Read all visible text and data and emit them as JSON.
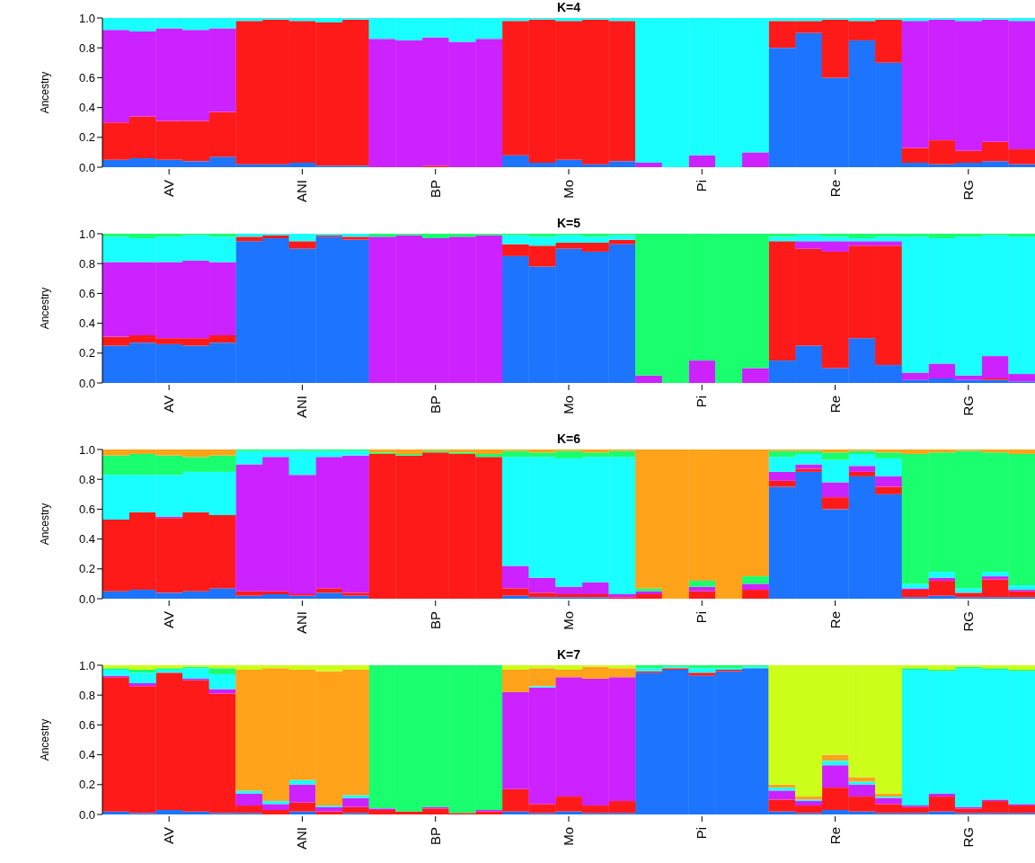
{
  "chart_data": [
    {
      "type": "bar",
      "stacked": true,
      "title": "K=4",
      "ylabel": "Ancestry",
      "ylim": [
        0,
        1
      ],
      "yticks": [
        {
          "value": 0,
          "label": "0.0"
        },
        {
          "value": 0.2,
          "label": "0.2"
        },
        {
          "value": 0.4,
          "label": "0.4"
        },
        {
          "value": 0.6,
          "label": "0.6"
        },
        {
          "value": 0.8,
          "label": "0.8"
        },
        {
          "value": 1,
          "label": "1.0"
        }
      ],
      "categories": [
        null,
        null,
        "AV",
        null,
        null,
        null,
        null,
        "ANI",
        null,
        null,
        null,
        null,
        "BP",
        null,
        null,
        null,
        null,
        "Mo",
        null,
        null,
        null,
        null,
        "Pi",
        null,
        null,
        null,
        null,
        "Re",
        null,
        null,
        null,
        null,
        "RG",
        null,
        null
      ],
      "series": [
        {
          "color": "#1c74ff",
          "values": [
            0.05,
            0.06,
            0.05,
            0.04,
            0.07,
            0.02,
            0.02,
            0.03,
            0.01,
            0.01,
            0,
            0,
            0,
            0,
            0,
            0.08,
            0.03,
            0.05,
            0.02,
            0.04,
            0,
            0,
            0,
            0,
            0,
            0.8,
            0.9,
            0.6,
            0.85,
            0.7,
            0.03,
            0.02,
            0.03,
            0.04,
            0.02
          ]
        },
        {
          "color": "#ff1a1a",
          "values": [
            0.25,
            0.28,
            0.26,
            0.27,
            0.3,
            0.96,
            0.97,
            0.95,
            0.96,
            0.98,
            0,
            0,
            0.01,
            0,
            0,
            0.9,
            0.96,
            0.93,
            0.97,
            0.94,
            0,
            0,
            0,
            0,
            0,
            0.18,
            0.08,
            0.39,
            0.13,
            0.29,
            0.1,
            0.16,
            0.08,
            0.13,
            0.1
          ]
        },
        {
          "color": "#cc22ff",
          "values": [
            0.62,
            0.57,
            0.62,
            0.61,
            0.56,
            0,
            0,
            0,
            0,
            0,
            0.86,
            0.85,
            0.86,
            0.84,
            0.86,
            0,
            0,
            0,
            0,
            0,
            0.03,
            0,
            0.08,
            0,
            0.1,
            0,
            0,
            0,
            0,
            0,
            0.85,
            0.81,
            0.87,
            0.82,
            0.86
          ]
        },
        {
          "color": "#19ffff",
          "values": [
            0.08,
            0.09,
            0.07,
            0.08,
            0.07,
            0.02,
            0.01,
            0.02,
            0.03,
            0.01,
            0.14,
            0.15,
            0.13,
            0.16,
            0.14,
            0.02,
            0.01,
            0.02,
            0.01,
            0.02,
            0.97,
            1,
            0.92,
            1,
            0.9,
            0.02,
            0.02,
            0.01,
            0.02,
            0.01,
            0.02,
            0.01,
            0.02,
            0.01,
            0.02
          ]
        }
      ]
    },
    {
      "type": "bar",
      "stacked": true,
      "title": "K=5",
      "ylabel": "Ancestry",
      "ylim": [
        0,
        1
      ],
      "yticks": [
        {
          "value": 0,
          "label": "0.0"
        },
        {
          "value": 0.2,
          "label": "0.2"
        },
        {
          "value": 0.4,
          "label": "0.4"
        },
        {
          "value": 0.6,
          "label": "0.6"
        },
        {
          "value": 0.8,
          "label": "0.8"
        },
        {
          "value": 1,
          "label": "1.0"
        }
      ],
      "categories": [
        null,
        null,
        "AV",
        null,
        null,
        null,
        null,
        "ANI",
        null,
        null,
        null,
        null,
        "BP",
        null,
        null,
        null,
        null,
        "Mo",
        null,
        null,
        null,
        null,
        "Pi",
        null,
        null,
        null,
        null,
        "Re",
        null,
        null,
        null,
        null,
        "RG",
        null,
        null
      ],
      "series": [
        {
          "color": "#1c74ff",
          "values": [
            0.25,
            0.27,
            0.26,
            0.25,
            0.27,
            0.95,
            0.97,
            0.9,
            0.98,
            0.96,
            0,
            0,
            0,
            0,
            0,
            0.85,
            0.78,
            0.9,
            0.88,
            0.93,
            0,
            0,
            0,
            0,
            0,
            0.15,
            0.25,
            0.1,
            0.3,
            0.12,
            0.02,
            0.03,
            0.02,
            0.02,
            0.01
          ]
        },
        {
          "color": "#ff1a1a",
          "values": [
            0.06,
            0.05,
            0.04,
            0.05,
            0.05,
            0.03,
            0.02,
            0.05,
            0.01,
            0.02,
            0,
            0,
            0,
            0,
            0,
            0.08,
            0.14,
            0.04,
            0.06,
            0.03,
            0,
            0,
            0,
            0,
            0,
            0.8,
            0.65,
            0.78,
            0.62,
            0.8,
            0,
            0,
            0,
            0.01,
            0
          ]
        },
        {
          "color": "#cc22ff",
          "values": [
            0.5,
            0.49,
            0.51,
            0.52,
            0.49,
            0,
            0,
            0,
            0,
            0,
            0.98,
            0.99,
            0.97,
            0.98,
            0.99,
            0,
            0,
            0,
            0,
            0,
            0.05,
            0,
            0.15,
            0,
            0.1,
            0,
            0.05,
            0.07,
            0.03,
            0.03,
            0.05,
            0.1,
            0.03,
            0.15,
            0.05
          ]
        },
        {
          "color": "#19ffff",
          "values": [
            0.17,
            0.16,
            0.17,
            0.17,
            0.17,
            0.02,
            0.01,
            0.05,
            0.01,
            0.02,
            0,
            0,
            0,
            0,
            0,
            0.06,
            0.06,
            0.05,
            0.04,
            0.03,
            0,
            0,
            0,
            0,
            0,
            0.03,
            0.04,
            0.03,
            0.02,
            0.03,
            0.91,
            0.84,
            0.93,
            0.81,
            0.92
          ]
        },
        {
          "color": "#19ff6e",
          "values": [
            0.02,
            0.03,
            0.02,
            0.01,
            0.02,
            0,
            0,
            0,
            0,
            0,
            0.02,
            0.01,
            0.03,
            0.02,
            0.01,
            0.01,
            0.02,
            0.01,
            0.02,
            0.01,
            0.95,
            1,
            0.85,
            1,
            0.9,
            0.02,
            0.01,
            0.02,
            0.03,
            0.02,
            0.02,
            0.03,
            0.02,
            0.01,
            0.02
          ]
        }
      ]
    },
    {
      "type": "bar",
      "stacked": true,
      "title": "K=6",
      "ylabel": "Ancestry",
      "ylim": [
        0,
        1
      ],
      "yticks": [
        {
          "value": 0,
          "label": "0.0"
        },
        {
          "value": 0.2,
          "label": "0.2"
        },
        {
          "value": 0.4,
          "label": "0.4"
        },
        {
          "value": 0.6,
          "label": "0.6"
        },
        {
          "value": 0.8,
          "label": "0.8"
        },
        {
          "value": 1,
          "label": "1.0"
        }
      ],
      "categories": [
        null,
        null,
        "AV",
        null,
        null,
        null,
        null,
        "ANI",
        null,
        null,
        null,
        null,
        "BP",
        null,
        null,
        null,
        null,
        "Mo",
        null,
        null,
        null,
        null,
        "Pi",
        null,
        null,
        null,
        null,
        "Re",
        null,
        null,
        null,
        null,
        "RG",
        null,
        null
      ],
      "series": [
        {
          "color": "#1c74ff",
          "values": [
            0.05,
            0.06,
            0.04,
            0.05,
            0.07,
            0.02,
            0.03,
            0.02,
            0.04,
            0.02,
            0,
            0,
            0,
            0,
            0,
            0.02,
            0.01,
            0.01,
            0.01,
            0,
            0,
            0,
            0,
            0,
            0,
            0.75,
            0.85,
            0.6,
            0.82,
            0.7,
            0.01,
            0.02,
            0.01,
            0.01,
            0.01
          ]
        },
        {
          "color": "#ff1a1a",
          "values": [
            0.48,
            0.52,
            0.5,
            0.53,
            0.49,
            0.03,
            0.02,
            0.01,
            0.03,
            0.02,
            0.97,
            0.96,
            0.98,
            0.97,
            0.95,
            0.05,
            0.03,
            0.02,
            0.02,
            0.01,
            0.03,
            0,
            0.05,
            0,
            0.06,
            0.04,
            0.02,
            0.08,
            0.03,
            0.05,
            0.05,
            0.1,
            0.03,
            0.12,
            0.04
          ]
        },
        {
          "color": "#cc22ff",
          "values": [
            0,
            0,
            0.01,
            0,
            0,
            0.85,
            0.9,
            0.8,
            0.88,
            0.92,
            0,
            0,
            0,
            0,
            0,
            0.15,
            0.1,
            0.05,
            0.08,
            0.02,
            0.02,
            0,
            0.03,
            0,
            0.04,
            0.06,
            0.03,
            0.1,
            0.04,
            0.07,
            0.01,
            0.02,
            0,
            0.02,
            0.01
          ]
        },
        {
          "color": "#19ffff",
          "values": [
            0.3,
            0.25,
            0.28,
            0.27,
            0.29,
            0.09,
            0.04,
            0.16,
            0.04,
            0.03,
            0,
            0,
            0,
            0,
            0,
            0.73,
            0.81,
            0.86,
            0.84,
            0.92,
            0,
            0,
            0,
            0,
            0,
            0.1,
            0.07,
            0.15,
            0.08,
            0.12,
            0.03,
            0.04,
            0.03,
            0.03,
            0.03
          ]
        },
        {
          "color": "#19ff6e",
          "values": [
            0.13,
            0.14,
            0.13,
            0.1,
            0.11,
            0.01,
            0.01,
            0.01,
            0.01,
            0.01,
            0.01,
            0.01,
            0.01,
            0.01,
            0.02,
            0.04,
            0.03,
            0.05,
            0.03,
            0.04,
            0.02,
            0,
            0.04,
            0,
            0.05,
            0.04,
            0.02,
            0.05,
            0.02,
            0.04,
            0.87,
            0.8,
            0.92,
            0.8,
            0.88
          ]
        },
        {
          "color": "#ffa31a",
          "values": [
            0.04,
            0.03,
            0.04,
            0.05,
            0.04,
            0,
            0,
            0,
            0,
            0,
            0.02,
            0.03,
            0.01,
            0.02,
            0.03,
            0.01,
            0.02,
            0.01,
            0.02,
            0.01,
            0.93,
            1,
            0.88,
            1,
            0.85,
            0.01,
            0.01,
            0.02,
            0.01,
            0.02,
            0.03,
            0.02,
            0.01,
            0.02,
            0.03
          ]
        }
      ]
    },
    {
      "type": "bar",
      "stacked": true,
      "title": "K=7",
      "ylabel": "Ancestry",
      "ylim": [
        0,
        1
      ],
      "yticks": [
        {
          "value": 0,
          "label": "0.0"
        },
        {
          "value": 0.2,
          "label": "0.2"
        },
        {
          "value": 0.4,
          "label": "0.4"
        },
        {
          "value": 0.6,
          "label": "0.6"
        },
        {
          "value": 0.8,
          "label": "0.8"
        },
        {
          "value": 1,
          "label": "1.0"
        }
      ],
      "categories": [
        null,
        null,
        "AV",
        null,
        null,
        null,
        null,
        "ANI",
        null,
        null,
        null,
        null,
        "BP",
        null,
        null,
        null,
        null,
        "Mo",
        null,
        null,
        null,
        null,
        "Pi",
        null,
        null,
        null,
        null,
        "Re",
        null,
        null,
        null,
        null,
        "RG",
        null,
        null
      ],
      "series": [
        {
          "color": "#1c74ff",
          "values": [
            0.02,
            0.01,
            0.03,
            0.02,
            0.01,
            0.01,
            0,
            0.02,
            0,
            0.01,
            0,
            0,
            0,
            0,
            0,
            0.02,
            0.01,
            0.02,
            0.01,
            0.01,
            0.95,
            0.97,
            0.93,
            0.96,
            0.98,
            0.02,
            0.01,
            0.03,
            0.02,
            0.01,
            0.01,
            0.02,
            0.01,
            0.01,
            0.01
          ]
        },
        {
          "color": "#ff1a1a",
          "values": [
            0.9,
            0.85,
            0.92,
            0.88,
            0.8,
            0.05,
            0.03,
            0.06,
            0.02,
            0.04,
            0.03,
            0.02,
            0.04,
            0.01,
            0.02,
            0.15,
            0.06,
            0.1,
            0.05,
            0.08,
            0.01,
            0.01,
            0.02,
            0.01,
            0,
            0.08,
            0.05,
            0.15,
            0.1,
            0.06,
            0.04,
            0.1,
            0.03,
            0.08,
            0.05
          ]
        },
        {
          "color": "#cc22ff",
          "values": [
            0.01,
            0.02,
            0,
            0.01,
            0.03,
            0.08,
            0.04,
            0.12,
            0.03,
            0.06,
            0.01,
            0,
            0.01,
            0,
            0.01,
            0.65,
            0.78,
            0.8,
            0.85,
            0.83,
            0,
            0,
            0,
            0,
            0,
            0.06,
            0.03,
            0.15,
            0.08,
            0.04,
            0.01,
            0.02,
            0.01,
            0.01,
            0.01
          ]
        },
        {
          "color": "#19ffff",
          "values": [
            0.04,
            0.07,
            0.02,
            0.07,
            0.1,
            0.02,
            0.02,
            0.03,
            0.01,
            0.02,
            0,
            0,
            0,
            0,
            0,
            0,
            0.01,
            0,
            0,
            0,
            0.02,
            0.01,
            0.03,
            0.01,
            0.01,
            0.02,
            0.01,
            0.03,
            0.02,
            0.01,
            0.91,
            0.82,
            0.93,
            0.87,
            0.89
          ]
        },
        {
          "color": "#19ff6e",
          "values": [
            0.01,
            0.02,
            0.01,
            0.01,
            0.04,
            0,
            0,
            0,
            0,
            0,
            0.96,
            0.98,
            0.95,
            0.99,
            0.97,
            0,
            0,
            0,
            0,
            0,
            0.02,
            0.01,
            0.02,
            0.02,
            0.01,
            0,
            0,
            0,
            0,
            0,
            0.01,
            0.01,
            0.01,
            0.01,
            0.01
          ]
        },
        {
          "color": "#ffa31a",
          "values": [
            0,
            0,
            0,
            0,
            0,
            0.81,
            0.89,
            0.74,
            0.9,
            0.84,
            0,
            0,
            0,
            0,
            0,
            0.15,
            0.12,
            0.05,
            0.08,
            0.06,
            0,
            0,
            0,
            0,
            0,
            0.02,
            0.02,
            0.04,
            0.03,
            0.02,
            0,
            0,
            0,
            0,
            0
          ]
        },
        {
          "color": "#ccff19",
          "values": [
            0.02,
            0.03,
            0.02,
            0.01,
            0.02,
            0.03,
            0.02,
            0.03,
            0.04,
            0.03,
            0,
            0,
            0,
            0,
            0,
            0.03,
            0.02,
            0.03,
            0.01,
            0.02,
            0,
            0,
            0,
            0,
            0,
            0.8,
            0.88,
            0.6,
            0.75,
            0.86,
            0.02,
            0.03,
            0.01,
            0.02,
            0.03
          ]
        }
      ]
    }
  ]
}
